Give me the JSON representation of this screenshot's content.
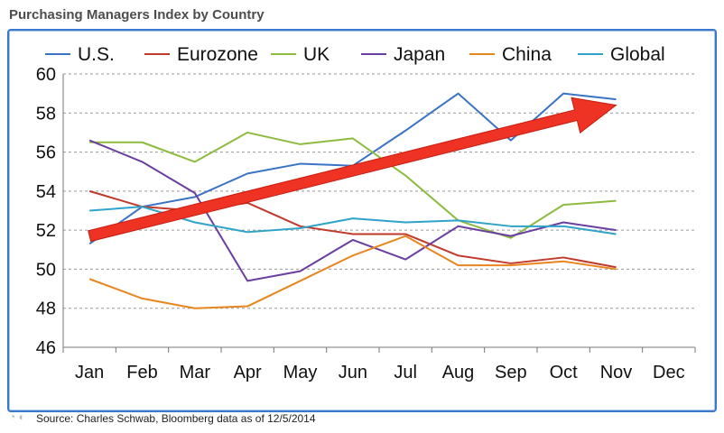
{
  "page": {
    "title": "Purchasing Managers Index by Country",
    "source": "Source: Charles Schwab, Bloomberg data as of 12/5/2014"
  },
  "chart_data": {
    "type": "line",
    "title": "Purchasing Managers Index by Country",
    "xlabel": "",
    "ylabel": "",
    "categories": [
      "Jan",
      "Feb",
      "Mar",
      "Apr",
      "May",
      "Jun",
      "Jul",
      "Aug",
      "Sep",
      "Oct",
      "Nov",
      "Dec"
    ],
    "ylim": [
      46,
      60
    ],
    "yticks": [
      46,
      48,
      50,
      52,
      54,
      56,
      58,
      60
    ],
    "grid": "horizontal dashed",
    "legend": "top",
    "series": [
      {
        "name": "U.S.",
        "color": "#3a73c4",
        "values": [
          51.3,
          53.2,
          53.7,
          54.9,
          55.4,
          55.3,
          57.1,
          59.0,
          56.6,
          59.0,
          58.7,
          null
        ]
      },
      {
        "name": "Eurozone",
        "color": "#c0392b",
        "values": [
          54.0,
          53.2,
          53.0,
          53.4,
          52.2,
          51.8,
          51.8,
          50.7,
          50.3,
          50.6,
          50.1,
          null
        ]
      },
      {
        "name": "UK",
        "color": "#8dbb3f",
        "values": [
          56.5,
          56.5,
          55.5,
          57.0,
          56.4,
          56.7,
          54.8,
          52.5,
          51.6,
          53.3,
          53.5,
          null
        ]
      },
      {
        "name": "Japan",
        "color": "#6b3fa0",
        "values": [
          56.6,
          55.5,
          53.9,
          49.4,
          49.9,
          51.5,
          50.5,
          52.2,
          51.7,
          52.4,
          52.0,
          null
        ]
      },
      {
        "name": "China",
        "color": "#e8861e",
        "values": [
          49.5,
          48.5,
          48.0,
          48.1,
          49.4,
          50.7,
          51.7,
          50.2,
          50.2,
          50.4,
          50.0,
          null
        ]
      },
      {
        "name": "Global",
        "color": "#2fa3c8",
        "values": [
          53.0,
          53.2,
          52.4,
          51.9,
          52.1,
          52.6,
          52.4,
          52.5,
          52.2,
          52.2,
          51.8,
          null
        ]
      }
    ],
    "annotations": [
      {
        "type": "arrow",
        "color": "#ee3324",
        "from": {
          "x": "Jan",
          "y": 51.7
        },
        "to": {
          "x": "Nov",
          "y": 58.4
        }
      }
    ]
  }
}
